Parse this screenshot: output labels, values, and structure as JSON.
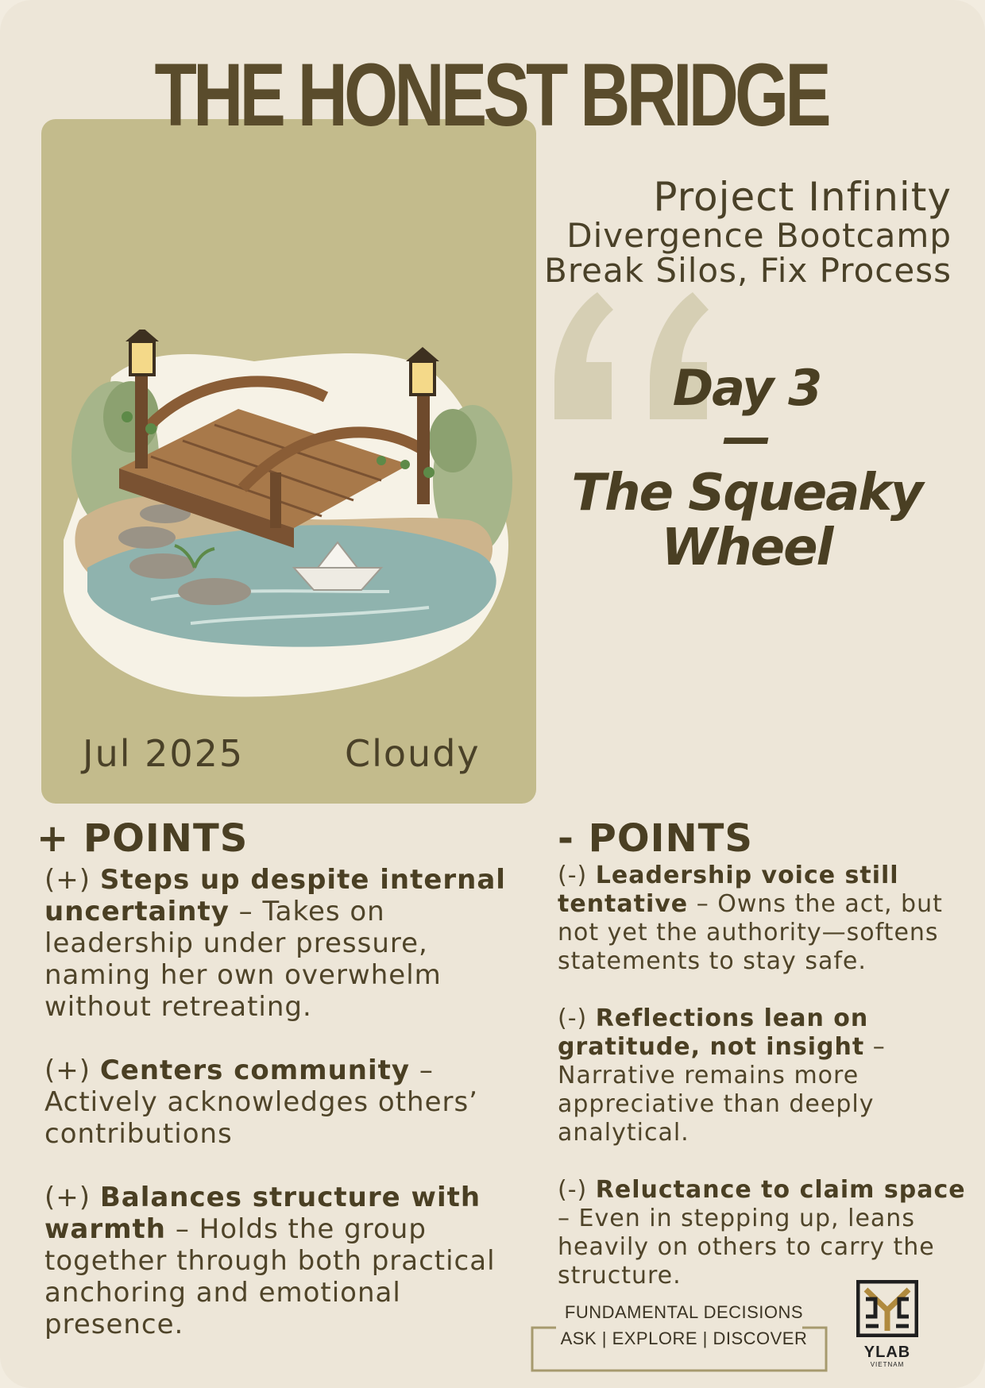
{
  "title": "THE HONEST BRIDGE",
  "project": {
    "line1": "Project Infinity",
    "line2": "Divergence Bootcamp",
    "line3": "Break Silos, Fix Process"
  },
  "day": {
    "label": "Day 3",
    "dash": "—",
    "subtitle_line1": "The Squeaky",
    "subtitle_line2": "Wheel"
  },
  "meta": {
    "date": "Jul 2025",
    "weather": "Cloudy"
  },
  "plus_section": {
    "heading": "+ POINTS",
    "items": [
      {
        "prefix": "(+)",
        "bold": "Steps up despite internal uncertainty",
        "text": " – Takes on leadership under pressure, naming her own overwhelm without retreating."
      },
      {
        "prefix": " (+)",
        "bold": "Centers community",
        "text": " – Actively acknowledges others’ contributions"
      },
      {
        "prefix": " (+)",
        "bold": "Balances structure with warmth",
        "text": " – Holds the group together through both practical anchoring and emotional presence."
      }
    ]
  },
  "minus_section": {
    "heading": "- POINTS",
    "items": [
      {
        "prefix": "(-)",
        "bold": "Leadership voice still tentative",
        "text": " – Owns the act, but not yet the authority—softens statements to stay safe."
      },
      {
        "prefix": " (-)",
        "bold": "Reflections lean on gratitude, not insight",
        "text": " – Narrative remains more appreciative than deeply analytical."
      },
      {
        "prefix": " (-)",
        "bold": "Reluctance to claim space",
        "text": " – Even in stepping up, leans heavily on others to carry the structure."
      }
    ]
  },
  "footer": {
    "line1": "FUNDAMENTAL DECISIONS",
    "line2": "ASK | EXPLORE | DISCOVER"
  },
  "logo": {
    "name": "YLAB",
    "sub": "VIETNAM",
    "icon": "ylab-logo-icon"
  },
  "colors": {
    "background": "#ede6d8",
    "panel": "#c3bb8c",
    "text": "#4f4429",
    "title": "#5a4c2c"
  }
}
